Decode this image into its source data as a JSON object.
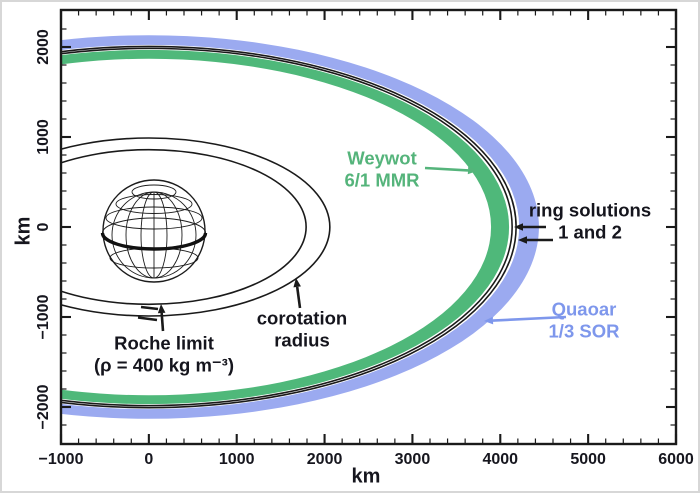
{
  "colors": {
    "ink": "#15151d",
    "green_band": "#4fb87a",
    "green_text": "#55b47b",
    "blue_band": "#9baaf0",
    "blue_text": "#7e97ec",
    "frame": "#1a1a1a"
  },
  "axes": {
    "x": {
      "label": "km",
      "ticks": [
        {
          "value": -1000,
          "label": "−1000"
        },
        {
          "value": 0,
          "label": "0"
        },
        {
          "value": 1000,
          "label": "1000"
        },
        {
          "value": 2000,
          "label": "2000"
        },
        {
          "value": 3000,
          "label": "3000"
        },
        {
          "value": 4000,
          "label": "4000"
        },
        {
          "value": 5000,
          "label": "5000"
        },
        {
          "value": 6000,
          "label": "6000"
        }
      ]
    },
    "y": {
      "label": "km",
      "ticks": [
        {
          "value": -2000,
          "label": "−2000"
        },
        {
          "value": -1000,
          "label": "−1000"
        },
        {
          "value": 0,
          "label": "0"
        },
        {
          "value": 1000,
          "label": "1000"
        },
        {
          "value": 2000,
          "label": "2000"
        }
      ]
    }
  },
  "annotations": {
    "weywot": {
      "line1": "Weywot",
      "line2": "6/1 MMR"
    },
    "ring_solutions": {
      "line1": "ring solutions",
      "line2": "1 and 2"
    },
    "quaoar_sor": {
      "line1": "Quaoar",
      "line2": "1/3 SOR"
    },
    "corotation": {
      "line1": "corotation",
      "line2": "radius"
    },
    "roche": {
      "line1": "Roche limit",
      "line2": "(ρ = 400 kg m⁻³)"
    }
  },
  "chart_data": {
    "type": "orbital-ellipse-diagram",
    "title": "",
    "xlabel": "km",
    "ylabel": "km",
    "xlim": [
      -1000,
      6000
    ],
    "ylim": [
      -2400,
      2400
    ],
    "x_major_tick": 1000,
    "x_minor_tick": 200,
    "y_major_tick": 1000,
    "y_minor_tick": 200,
    "grid": false,
    "center_km": [
      0,
      0
    ],
    "projection_flattening": 0.48,
    "central_body": {
      "label_implied": "Quaoar wireframe globe",
      "radius_km": 580
    },
    "ellipses": [
      {
        "name": "Roche limit (ρ = 400 kg m⁻³)",
        "kind": "line",
        "semi_major_km": 1790
      },
      {
        "name": "corotation radius",
        "kind": "line",
        "semi_major_km": 2060
      },
      {
        "name": "Weywot 6/1 MMR",
        "kind": "band",
        "band_km": [
          3895,
          4100
        ],
        "color": "green"
      },
      {
        "name": "ring solution 1",
        "kind": "line",
        "semi_major_km": 4135
      },
      {
        "name": "ring solution 2",
        "kind": "line",
        "semi_major_km": 4180
      },
      {
        "name": "Quaoar 1/3 SOR",
        "kind": "band",
        "band_km": [
          4215,
          4440
        ],
        "color": "blue"
      }
    ]
  }
}
